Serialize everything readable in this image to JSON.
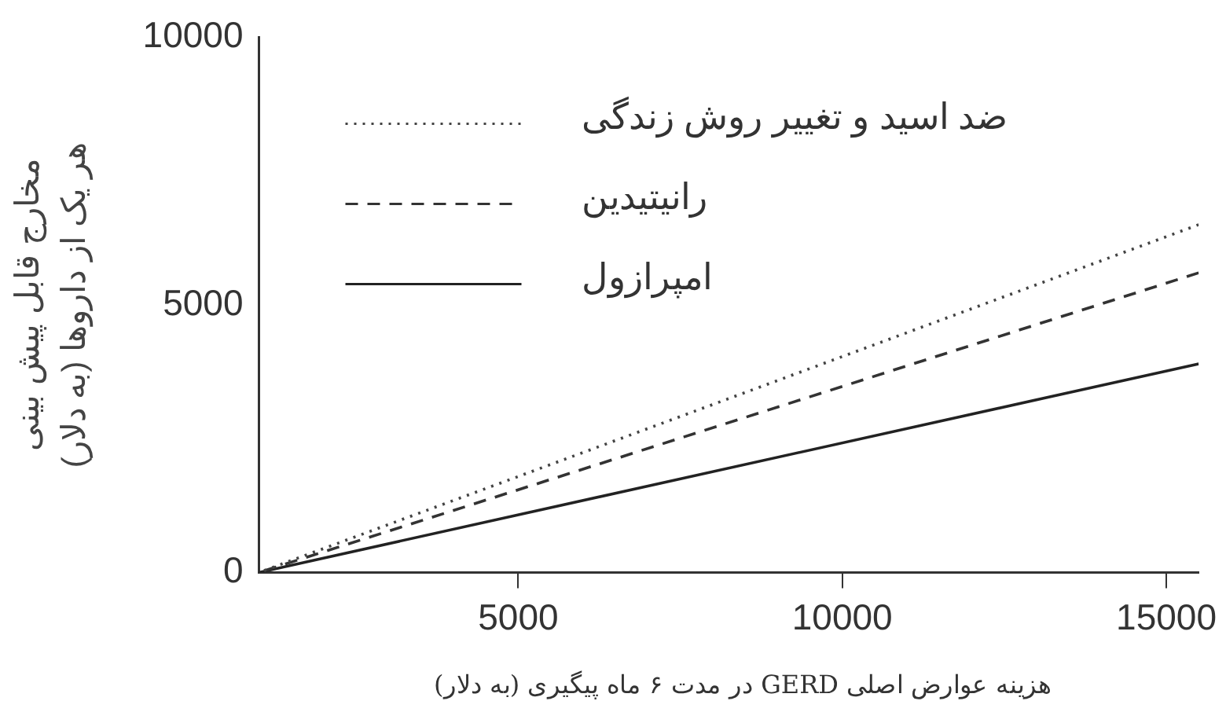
{
  "chart_data": {
    "type": "line",
    "xlabel": "هزینه عوارض اصلی GERD در مدت ۶ ماه پیگیری (به دلار)",
    "ylabel": "مخارج قابل پیش بینی\nهر یک از داروها (به دلار)",
    "xlim": [
      1000,
      15500
    ],
    "xticks": [
      5000,
      10000,
      15000
    ],
    "ylim": [
      0,
      10000
    ],
    "yticks": [
      0,
      5000,
      10000
    ],
    "grid": false,
    "legend": "top",
    "marker": "none",
    "x": [
      1000,
      15500
    ],
    "series": [
      {
        "name": "ضد اسید و تغییر روش زندگی",
        "color": "#444444",
        "line_style": "dotted",
        "values": [
          0,
          6500
        ]
      },
      {
        "name": "رانیتیدین",
        "color": "#333333",
        "line_style": "dashed",
        "values": [
          0,
          5600
        ]
      },
      {
        "name": "امپرازول",
        "color": "#222222",
        "line_style": "solid",
        "values": [
          0,
          3900
        ]
      }
    ]
  }
}
